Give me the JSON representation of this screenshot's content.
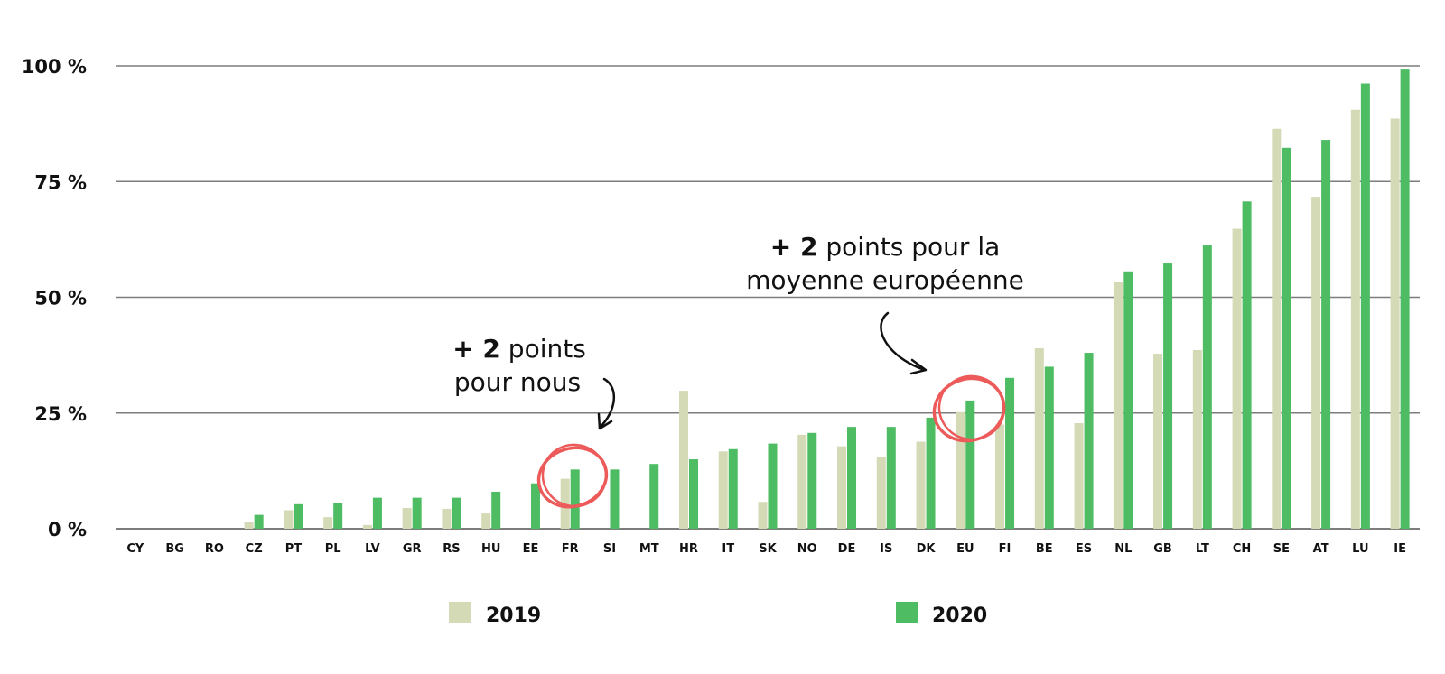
{
  "chart_data": {
    "type": "bar",
    "categories": [
      "CY",
      "BG",
      "RO",
      "CZ",
      "PT",
      "PL",
      "LV",
      "GR",
      "RS",
      "HU",
      "EE",
      "FR",
      "SI",
      "MT",
      "HR",
      "IT",
      "SK",
      "NO",
      "DE",
      "IS",
      "DK",
      "EU",
      "FI",
      "BE",
      "ES",
      "NL",
      "GB",
      "LT",
      "CH",
      "SE",
      "AT",
      "LU",
      "IE"
    ],
    "series": [
      {
        "name": "2019",
        "color": "#d3dab5",
        "values": [
          0,
          0,
          0,
          1.5,
          4,
          2.5,
          0.8,
          4.5,
          4.3,
          3.3,
          0,
          10.8,
          0,
          0,
          29.8,
          16.7,
          5.8,
          20.3,
          17.8,
          15.6,
          18.8,
          25.2,
          22.5,
          39,
          22.8,
          53.3,
          37.8,
          38.6,
          64.8,
          86.4,
          71.7,
          90.5,
          88.6
        ]
      },
      {
        "name": "2020",
        "color": "#4dbc62",
        "values": [
          0,
          0,
          0,
          3,
          5.3,
          5.5,
          6.7,
          6.7,
          6.7,
          8,
          9.8,
          12.8,
          12.8,
          14,
          15,
          17.2,
          18.4,
          20.7,
          22,
          22,
          24,
          27.7,
          32.6,
          35,
          38,
          55.6,
          57.3,
          61.2,
          70.7,
          82.3,
          84,
          96.2,
          99.2
        ]
      }
    ],
    "yticks": [
      "0 %",
      "25 %",
      "50 %",
      "75 %",
      "100 %"
    ],
    "ylim": [
      0,
      100
    ],
    "grid": true,
    "legend": "bottom"
  },
  "annotations": {
    "fr": {
      "line1_bold": "+ 2",
      "line1_rest": " points",
      "line2": "pour nous"
    },
    "eu": {
      "line1_bold": "+ 2",
      "line1_rest": " points pour la",
      "line2": "moyenne européenne"
    }
  },
  "highlight_color": "#ec5a5a"
}
